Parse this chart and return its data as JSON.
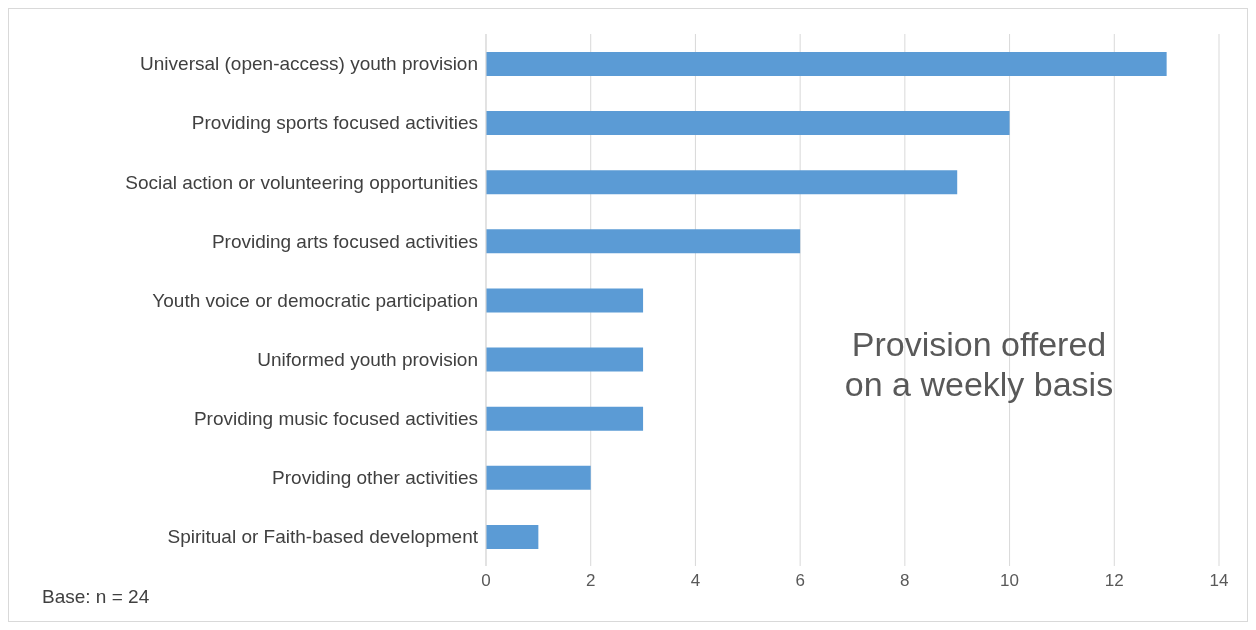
{
  "chart_data": {
    "type": "bar",
    "orientation": "horizontal",
    "title": "Provision offered on a weekly basis",
    "categories": [
      "Universal (open-access) youth provision",
      "Providing sports focused activities",
      "Social action or volunteering opportunities",
      "Providing arts focused activities",
      "Youth voice or democratic participation",
      "Uniformed youth provision",
      "Providing music focused activities",
      "Providing other activities",
      "Spiritual or Faith-based development"
    ],
    "values": [
      13,
      10,
      9,
      6,
      3,
      3,
      3,
      2,
      1
    ],
    "color": "#5b9bd5",
    "xlim": [
      0,
      14
    ],
    "xticks": [
      0,
      2,
      4,
      6,
      8,
      10,
      12,
      14
    ],
    "grid": "x",
    "annotations": [
      "Base: n = 24"
    ]
  }
}
